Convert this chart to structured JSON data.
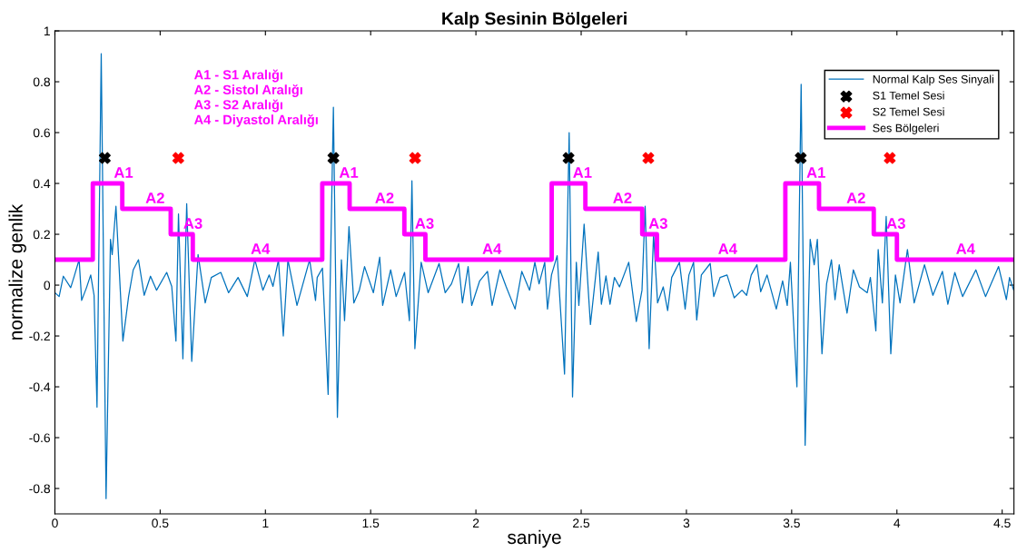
{
  "chart_data": {
    "type": "line",
    "title": "Kalp Sesinin Bölgeleri",
    "xlabel": "saniye",
    "ylabel": "normalize genlik",
    "xlim": [
      0,
      4.556
    ],
    "ylim": [
      -0.9,
      1
    ],
    "xticks": [
      0,
      0.5,
      1,
      1.5,
      2,
      2.5,
      3,
      3.5,
      4,
      4.5
    ],
    "yticks": [
      -0.8,
      -0.6,
      -0.4,
      -0.2,
      0,
      0.2,
      0.4,
      0.6,
      0.8,
      1
    ],
    "grid": false,
    "legend": "top right",
    "series": [
      {
        "name": "Normal Kalp Ses Sinyali",
        "color": "#0072bd",
        "marker": "none",
        "x": [
          0,
          0.02,
          0.04,
          0.075,
          0.09,
          0.115,
          0.127,
          0.15,
          0.17,
          0.186,
          0.2,
          0.22,
          0.243,
          0.264,
          0.272,
          0.29,
          0.323,
          0.35,
          0.372,
          0.397,
          0.424,
          0.454,
          0.483,
          0.531,
          0.555,
          0.575,
          0.587,
          0.608,
          0.626,
          0.65,
          0.68,
          0.714,
          0.743,
          0.788,
          0.825,
          0.87,
          0.914,
          0.95,
          0.988,
          1.018,
          1.036,
          1.062,
          1.085,
          1.107,
          1.15,
          1.21,
          1.238,
          1.246,
          1.271,
          1.298,
          1.323,
          1.342,
          1.361,
          1.376,
          1.397,
          1.42,
          1.446,
          1.471,
          1.513,
          1.543,
          1.557,
          1.595,
          1.621,
          1.661,
          1.684,
          1.696,
          1.71,
          1.74,
          1.773,
          1.825,
          1.854,
          1.884,
          1.918,
          1.936,
          1.963,
          1.98,
          2.018,
          2.055,
          2.077,
          2.114,
          2.144,
          2.186,
          2.218,
          2.255,
          2.28,
          2.3,
          2.327,
          2.34,
          2.359,
          2.386,
          2.421,
          2.443,
          2.459,
          2.477,
          2.489,
          2.514,
          2.544,
          2.581,
          2.596,
          2.618,
          2.637,
          2.658,
          2.682,
          2.726,
          2.762,
          2.789,
          2.804,
          2.823,
          2.844,
          2.863,
          2.89,
          2.911,
          2.93,
          2.967,
          2.994,
          3.012,
          3.034,
          3.049,
          3.071,
          3.113,
          3.13,
          3.16,
          3.193,
          3.227,
          3.264,
          3.286,
          3.308,
          3.335,
          3.353,
          3.383,
          3.427,
          3.457,
          3.479,
          3.494,
          3.525,
          3.545,
          3.564,
          3.588,
          3.607,
          3.622,
          3.644,
          3.666,
          3.689,
          3.706,
          3.726,
          3.763,
          3.793,
          3.822,
          3.859,
          3.874,
          3.9,
          3.911,
          3.931,
          3.949,
          3.971,
          3.993,
          4.015,
          4.05,
          4.082,
          4.131,
          4.171,
          4.216,
          4.242,
          4.275,
          4.312,
          4.375,
          4.421,
          4.483,
          4.52,
          4.535,
          4.555
        ],
        "values": [
          -0.03,
          -0.045,
          0.035,
          -0.01,
          0.03,
          0.1,
          -0.06,
          -0.01,
          0.04,
          -0.04,
          -0.48,
          0.91,
          -0.84,
          0.18,
          0.12,
          0.31,
          -0.22,
          -0.045,
          0.06,
          0.1,
          -0.04,
          0.035,
          -0.02,
          0.05,
          -0.005,
          -0.22,
          0.28,
          -0.29,
          0.32,
          -0.3,
          0.12,
          -0.07,
          0.03,
          0.05,
          -0.03,
          0.03,
          -0.045,
          0.1,
          -0.02,
          0.04,
          -0.005,
          0.1,
          -0.2,
          0.1,
          -0.08,
          0.1,
          -0.06,
          0.03,
          0.067,
          -0.43,
          0.7,
          -0.52,
          0.1,
          -0.14,
          0.23,
          -0.07,
          -0.02,
          0.073,
          -0.03,
          0.11,
          -0.08,
          0.06,
          -0.045,
          0.05,
          -0.14,
          0.41,
          -0.25,
          0.09,
          -0.03,
          0.085,
          -0.03,
          0.005,
          0.085,
          -0.07,
          0.073,
          -0.08,
          0.017,
          0.054,
          -0.08,
          0.06,
          -0.007,
          -0.094,
          0.054,
          -0.02,
          0.09,
          0.005,
          0.09,
          -0.094,
          0.04,
          0.116,
          -0.35,
          0.6,
          -0.44,
          0.09,
          -0.08,
          0.24,
          -0.155,
          0.13,
          -0.075,
          0.036,
          -0.075,
          0.03,
          -0.007,
          0.09,
          -0.143,
          -0.02,
          0.31,
          -0.25,
          0.2,
          -0.07,
          -0.007,
          -0.1,
          0.03,
          0.09,
          -0.094,
          0.04,
          0.09,
          -0.137,
          0.04,
          0.085,
          -0.045,
          0.03,
          0.04,
          -0.05,
          -0.02,
          -0.04,
          0.04,
          0.08,
          -0.026,
          0.04,
          -0.094,
          0.017,
          -0.08,
          0.09,
          -0.4,
          0.79,
          -0.63,
          0.18,
          0.08,
          0.18,
          -0.27,
          0.005,
          0.1,
          -0.057,
          0.08,
          -0.11,
          0.06,
          -0.007,
          -0.03,
          0.03,
          -0.18,
          0.14,
          -0.07,
          0.27,
          -0.27,
          0.04,
          -0.07,
          0.14,
          -0.07,
          0.08,
          -0.04,
          0.054,
          -0.075,
          0.05,
          -0.045,
          0.06,
          -0.045,
          0.073,
          -0.057,
          0.03,
          -0.02
        ]
      },
      {
        "name": "S1 Temel Sesi",
        "type": "scatter",
        "color": "#000000",
        "marker": "cross",
        "x": [
          0.237,
          1.323,
          2.44,
          3.543
        ],
        "values": [
          0.5,
          0.5,
          0.5,
          0.5
        ]
      },
      {
        "name": "S2 Temel Sesi",
        "type": "scatter",
        "color": "#ff0000",
        "marker": "cross",
        "x": [
          0.586,
          1.711,
          2.819,
          3.966
        ],
        "values": [
          0.5,
          0.5,
          0.5,
          0.5
        ]
      },
      {
        "name": "Ses Bölgeleri",
        "type": "step",
        "color": "#ff00ff",
        "marker": "none",
        "x": [
          0,
          0.18,
          0.32,
          0.55,
          0.655,
          1.27,
          1.4,
          1.66,
          1.76,
          2.36,
          2.52,
          2.79,
          2.86,
          3.47,
          3.63,
          3.89,
          4.0,
          4.556
        ],
        "values": [
          0.1,
          0.4,
          0.3,
          0.2,
          0.1,
          0.4,
          0.3,
          0.2,
          0.1,
          0.4,
          0.3,
          0.2,
          0.1,
          0.4,
          0.3,
          0.2,
          0.1,
          0.1
        ]
      }
    ],
    "annotations": [
      "A1 - S1 Aralığı",
      "A2 - Sistol Aralığı",
      "A3 - S2 Aralığı",
      "A4 - Diyastol Aralığı",
      {
        "text": "A1",
        "x": 0.29,
        "y": 0.4
      },
      {
        "text": "A2",
        "x": 0.44,
        "y": 0.3
      },
      {
        "text": "A3",
        "x": 0.62,
        "y": 0.2
      },
      {
        "text": "A4",
        "x": 0.94,
        "y": 0.1
      },
      {
        "text": "A1",
        "x": 1.36,
        "y": 0.4
      },
      {
        "text": "A2",
        "x": 1.53,
        "y": 0.3
      },
      {
        "text": "A3",
        "x": 1.72,
        "y": 0.2
      },
      {
        "text": "A4",
        "x": 2.04,
        "y": 0.1
      },
      {
        "text": "A1",
        "x": 2.47,
        "y": 0.4
      },
      {
        "text": "A2",
        "x": 2.66,
        "y": 0.3
      },
      {
        "text": "A3",
        "x": 2.83,
        "y": 0.2
      },
      {
        "text": "A4",
        "x": 3.16,
        "y": 0.1
      },
      {
        "text": "A1",
        "x": 3.58,
        "y": 0.4
      },
      {
        "text": "A2",
        "x": 3.77,
        "y": 0.3
      },
      {
        "text": "A3",
        "x": 3.96,
        "y": 0.2
      },
      {
        "text": "A4",
        "x": 4.29,
        "y": 0.1
      }
    ]
  }
}
